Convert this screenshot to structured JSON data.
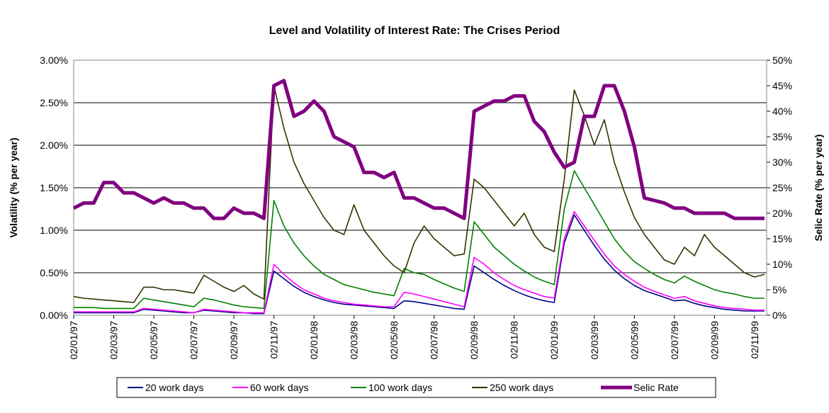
{
  "chart_data": {
    "type": "line",
    "title": "Level and Volatility of Interest Rate: The Crises Period",
    "y_label": "Volatility (% per year)",
    "y2_label": "Selic Rate (% per year)",
    "categories": [
      "02/01/97",
      null,
      null,
      null,
      "02/03/97",
      null,
      null,
      null,
      "02/05/97",
      null,
      null,
      null,
      "02/07/97",
      null,
      null,
      null,
      "02/09/97",
      null,
      null,
      null,
      "02/11/97",
      null,
      null,
      null,
      "02/01/98",
      null,
      null,
      null,
      "02/03/98",
      null,
      null,
      null,
      "02/05/98",
      null,
      null,
      null,
      "02/07/98",
      null,
      null,
      null,
      "02/09/98",
      null,
      null,
      null,
      "02/11/98",
      null,
      null,
      null,
      "02/01/99",
      null,
      null,
      null,
      "02/03/99",
      null,
      null,
      null,
      "02/05/99",
      null,
      null,
      null,
      "02/07/99",
      null,
      null,
      null,
      "02/09/99",
      null,
      null,
      null,
      "02/11/99",
      null
    ],
    "ylim": [
      0,
      3
    ],
    "yticks": [
      {
        "value": 0,
        "label": "0.00%"
      },
      {
        "value": 0.5,
        "label": "0.50%"
      },
      {
        "value": 1,
        "label": "1.00%"
      },
      {
        "value": 1.5,
        "label": "1.50%"
      },
      {
        "value": 2,
        "label": "2.00%"
      },
      {
        "value": 2.5,
        "label": "2.50%"
      },
      {
        "value": 3,
        "label": "3.00%"
      }
    ],
    "y2lim": [
      0,
      50
    ],
    "y2ticks": [
      {
        "value": 0,
        "label": "0%"
      },
      {
        "value": 5,
        "label": "5%"
      },
      {
        "value": 10,
        "label": "10%"
      },
      {
        "value": 15,
        "label": "15%"
      },
      {
        "value": 20,
        "label": "20%"
      },
      {
        "value": 25,
        "label": "25%"
      },
      {
        "value": 30,
        "label": "30%"
      },
      {
        "value": 35,
        "label": "35%"
      },
      {
        "value": 40,
        "label": "40%"
      },
      {
        "value": 45,
        "label": "45%"
      },
      {
        "value": 50,
        "label": "50%"
      }
    ],
    "grid": true,
    "legend": "bottom",
    "series": [
      {
        "name": "20 work days",
        "color": "#000080",
        "values": [
          0.03,
          0.03,
          0.03,
          0.03,
          0.03,
          0.03,
          0.03,
          0.07,
          0.06,
          0.05,
          0.04,
          0.03,
          0.03,
          0.06,
          0.05,
          0.04,
          0.03,
          0.03,
          0.02,
          0.02,
          0.52,
          0.43,
          0.34,
          0.27,
          0.22,
          0.18,
          0.15,
          0.13,
          0.12,
          0.11,
          0.1,
          0.09,
          0.08,
          0.17,
          0.16,
          0.14,
          0.12,
          0.1,
          0.08,
          0.07,
          0.58,
          0.5,
          0.42,
          0.35,
          0.29,
          0.24,
          0.2,
          0.17,
          0.15,
          0.85,
          1.18,
          1.0,
          0.82,
          0.66,
          0.53,
          0.43,
          0.35,
          0.29,
          0.25,
          0.21,
          0.17,
          0.18,
          0.14,
          0.11,
          0.09,
          0.07,
          0.06,
          0.05,
          0.05,
          0.05
        ]
      },
      {
        "name": "60 work days",
        "color": "#ff00ff",
        "values": [
          0.04,
          0.04,
          0.04,
          0.04,
          0.04,
          0.04,
          0.04,
          0.08,
          0.07,
          0.06,
          0.05,
          0.04,
          0.03,
          0.07,
          0.06,
          0.05,
          0.04,
          0.03,
          0.03,
          0.03,
          0.6,
          0.48,
          0.38,
          0.3,
          0.25,
          0.2,
          0.17,
          0.15,
          0.13,
          0.12,
          0.11,
          0.1,
          0.1,
          0.27,
          0.25,
          0.22,
          0.19,
          0.16,
          0.13,
          0.1,
          0.68,
          0.6,
          0.5,
          0.42,
          0.35,
          0.3,
          0.26,
          0.22,
          0.2,
          0.9,
          1.22,
          1.05,
          0.88,
          0.72,
          0.58,
          0.48,
          0.4,
          0.33,
          0.28,
          0.24,
          0.2,
          0.22,
          0.17,
          0.14,
          0.11,
          0.09,
          0.08,
          0.07,
          0.06,
          0.06
        ]
      },
      {
        "name": "100 work days",
        "color": "#008000",
        "values": [
          0.09,
          0.09,
          0.09,
          0.08,
          0.08,
          0.08,
          0.08,
          0.2,
          0.18,
          0.16,
          0.14,
          0.12,
          0.1,
          0.2,
          0.18,
          0.15,
          0.12,
          0.1,
          0.09,
          0.08,
          1.35,
          1.05,
          0.85,
          0.7,
          0.58,
          0.48,
          0.42,
          0.36,
          0.33,
          0.3,
          0.27,
          0.25,
          0.23,
          0.55,
          0.5,
          0.48,
          0.42,
          0.37,
          0.32,
          0.28,
          1.1,
          0.95,
          0.8,
          0.7,
          0.6,
          0.52,
          0.45,
          0.4,
          0.36,
          1.25,
          1.7,
          1.5,
          1.3,
          1.1,
          0.9,
          0.75,
          0.63,
          0.55,
          0.48,
          0.42,
          0.38,
          0.46,
          0.4,
          0.35,
          0.3,
          0.27,
          0.25,
          0.22,
          0.2,
          0.2
        ]
      },
      {
        "name": "250 work days",
        "color": "#333300",
        "values": [
          0.22,
          0.2,
          0.19,
          0.18,
          0.17,
          0.16,
          0.15,
          0.33,
          0.33,
          0.3,
          0.3,
          0.28,
          0.26,
          0.47,
          0.4,
          0.33,
          0.28,
          0.35,
          0.25,
          0.19,
          2.7,
          2.2,
          1.8,
          1.55,
          1.35,
          1.15,
          1.0,
          0.95,
          1.3,
          1.0,
          0.85,
          0.7,
          0.58,
          0.5,
          0.85,
          1.05,
          0.9,
          0.8,
          0.7,
          0.72,
          1.6,
          1.5,
          1.35,
          1.2,
          1.05,
          1.2,
          0.95,
          0.8,
          0.75,
          1.6,
          2.65,
          2.35,
          2.0,
          2.3,
          1.8,
          1.45,
          1.15,
          0.95,
          0.8,
          0.65,
          0.6,
          0.8,
          0.7,
          0.95,
          0.8,
          0.7,
          0.6,
          0.5,
          0.45,
          0.48
        ]
      },
      {
        "name": "Selic Rate",
        "color": "#800080",
        "axis": "y2",
        "values": [
          21,
          22,
          22,
          26,
          26,
          24,
          24,
          23,
          22,
          23,
          22,
          22,
          21,
          21,
          19,
          19,
          21,
          20,
          20,
          19,
          45,
          46,
          39,
          40,
          42,
          40,
          35,
          34,
          33,
          28,
          28,
          27,
          28,
          23,
          23,
          22,
          21,
          21,
          20,
          19,
          40,
          41,
          42,
          42,
          43,
          43,
          38,
          36,
          32,
          29,
          30,
          39,
          39,
          45,
          45,
          40,
          33,
          23,
          22.5,
          22,
          21,
          21,
          20,
          20,
          20,
          20,
          19,
          19,
          19,
          19
        ]
      }
    ]
  }
}
